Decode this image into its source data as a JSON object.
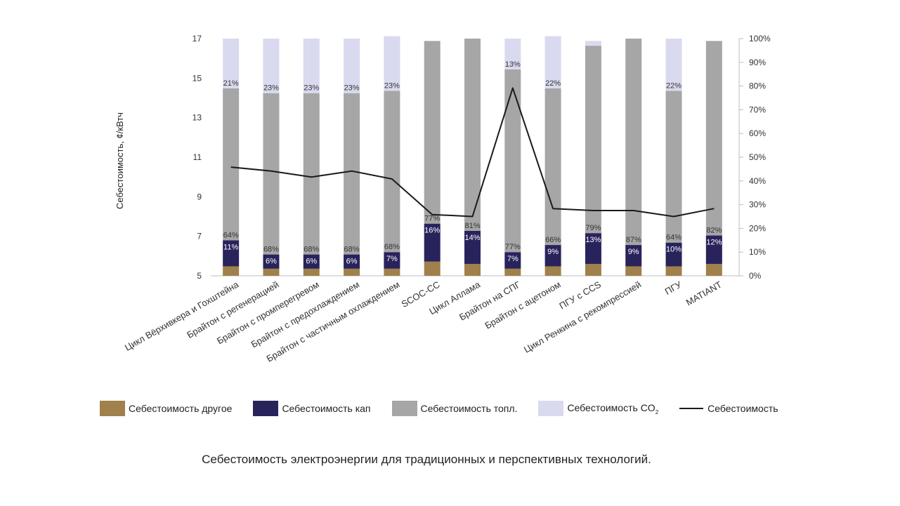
{
  "chart_data": {
    "type": "bar",
    "title": "",
    "ylabel": "Себестоимость, ¢/кВтч",
    "ylim": [
      5,
      17
    ],
    "yticks": [
      "5",
      "7",
      "9",
      "11",
      "13",
      "15",
      "17"
    ],
    "y2lim": [
      0,
      100
    ],
    "y2ticks": [
      "0%",
      "10%",
      "20%",
      "30%",
      "40%",
      "50%",
      "60%",
      "70%",
      "80%",
      "90%",
      "100%"
    ],
    "stacked": true,
    "categories": [
      "Цикл Вёрхивкера и Гохштейна",
      "Брайтон с регенерацией",
      "Брайтон с промперегревом",
      "Брайтон с предохлаждением",
      "Брайтон с частичным охлаждением",
      "SCOC-CC",
      "Цикл Аллама",
      "Брайтон на СПГ",
      "Брайтон с ацетоном",
      "ПГУ с CCS",
      "Цикл Ренкина с рекомпрессией",
      "ПГУ",
      "MATIANT"
    ],
    "series": [
      {
        "name": "Себестоимость другое",
        "color": "#a0804b",
        "values": [
          4,
          3,
          3,
          3,
          3,
          6,
          5,
          3,
          4,
          5,
          4,
          4,
          5
        ],
        "labels": [
          "",
          "",
          "",
          "",
          "",
          "",
          "",
          "",
          "",
          "",
          "",
          "",
          ""
        ]
      },
      {
        "name": "Себестоимость кап",
        "color": "#29235c",
        "values": [
          11,
          6,
          6,
          6,
          7,
          16,
          14,
          7,
          9,
          13,
          9,
          10,
          12
        ],
        "labels": [
          "11%",
          "6%",
          "6%",
          "6%",
          "7%",
          "16%",
          "14%",
          "7%",
          "9%",
          "13%",
          "9%",
          "10%",
          "12%"
        ]
      },
      {
        "name": "Себестоимость топл.",
        "color": "#a6a6a6",
        "values": [
          64,
          68,
          68,
          68,
          68,
          77,
          81,
          77,
          66,
          79,
          87,
          64,
          82
        ],
        "labels": [
          "64%",
          "68%",
          "68%",
          "68%",
          "68%",
          "77%",
          "81%",
          "77%",
          "66%",
          "79%",
          "87%",
          "64%",
          "82%"
        ]
      },
      {
        "name": "Себестоимость CO₂",
        "color": "#d9d9ef",
        "values": [
          21,
          23,
          23,
          23,
          23,
          0,
          0,
          13,
          22,
          2,
          0,
          22,
          0
        ],
        "labels": [
          "21%",
          "23%",
          "23%",
          "23%",
          "23%",
          "",
          "",
          "13%",
          "22%",
          "",
          "",
          "22%",
          ""
        ]
      }
    ],
    "line": {
      "name": "Себестоимость",
      "color": "#1a1a1a",
      "values": [
        10.5,
        10.3,
        10.0,
        10.3,
        9.9,
        8.1,
        8.0,
        14.5,
        8.4,
        8.3,
        8.3,
        8.0,
        8.4
      ]
    },
    "legend": {
      "position": "bottom",
      "items": [
        {
          "type": "swatch",
          "color": "#a0804b",
          "label": "Себестоимость другое"
        },
        {
          "type": "swatch",
          "color": "#29235c",
          "label": "Себестоимость кап"
        },
        {
          "type": "swatch",
          "color": "#a6a6a6",
          "label": "Себестоимость топл."
        },
        {
          "type": "swatch",
          "color": "#d9d9ef",
          "label": "Себестоимость CO",
          "sub": "2"
        },
        {
          "type": "line",
          "color": "#1a1a1a",
          "label": "Себестоимость"
        }
      ]
    },
    "grid": false
  },
  "caption": "Себестоимость электроэнергии для традиционных и перспективных технологий."
}
